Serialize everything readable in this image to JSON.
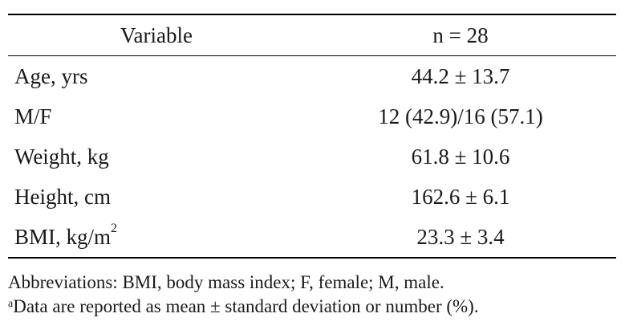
{
  "table": {
    "headers": {
      "variable": "Variable",
      "n": "n = 28"
    },
    "rows": [
      {
        "label": "Age, yrs",
        "sup": "",
        "value": "44.2 ± 13.7"
      },
      {
        "label": "M/F",
        "sup": "",
        "value": "12 (42.9)/16 (57.1)"
      },
      {
        "label": "Weight, kg",
        "sup": "",
        "value": "61.8 ± 10.6"
      },
      {
        "label": "Height, cm",
        "sup": "",
        "value": "162.6 ± 6.1"
      },
      {
        "label": "BMI, kg/m",
        "sup": "2",
        "value": "23.3 ± 3.4"
      }
    ]
  },
  "notes": {
    "abbreviations": "Abbreviations: BMI, body mass index; F, female; M, male.",
    "footnote_marker": "a",
    "footnote_text": "Data are reported as mean ± standard deviation or number (%)."
  }
}
